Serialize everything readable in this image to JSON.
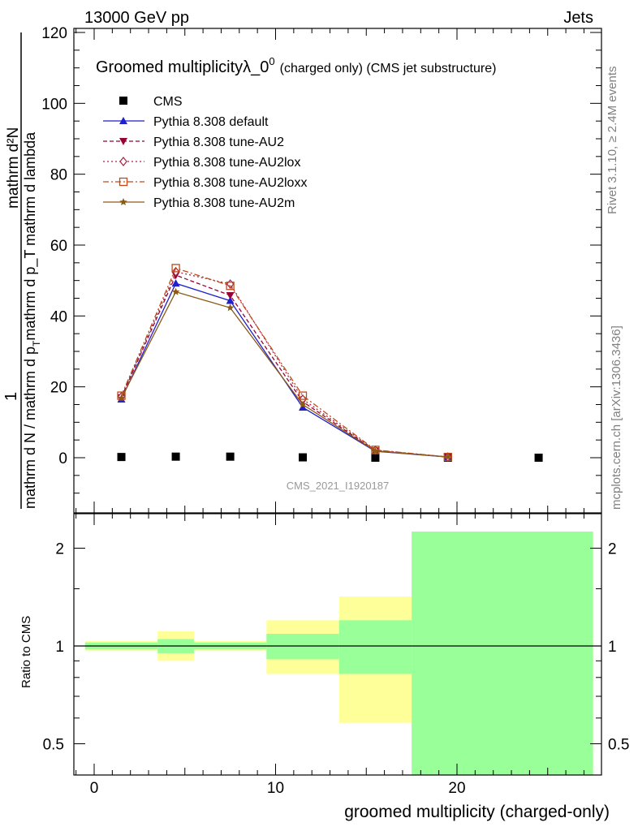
{
  "header": {
    "left": "13000 GeV pp",
    "right": "Jets"
  },
  "side_text": {
    "rivet": "Rivet 3.1.10, ≥ 2.4M events",
    "mcplots": "mcplots.cern.ch [arXiv:1306.3436]"
  },
  "chart_data": [
    {
      "type": "scatter",
      "title": "Groomed multiplicityλ_0",
      "title_sup": "0",
      "title_suffix": "(charged only) (CMS jet substructure)",
      "watermark": "CMS_2021_I1920187",
      "ylabel_numerator": "mathrm d²N",
      "ylabel_denominator": "mathrm d N / mathrm d p",
      "ylabel_prefix": "1",
      "ylabel_full_denominator_tail": "mathrm d p_T mathrm d lambda",
      "ylim": [
        -14,
        121
      ],
      "yticks": [
        0,
        20,
        40,
        60,
        80,
        100,
        120
      ],
      "xlim": [
        -1,
        28
      ],
      "legend_position": "top-left",
      "series": [
        {
          "name": "CMS",
          "marker": "square",
          "color": "#000000",
          "x": [
            1.5,
            4.5,
            7.5,
            11.5,
            15.5,
            19.5,
            24.5
          ],
          "y": [
            0.2,
            0.3,
            0.3,
            0.1,
            0.0,
            0.0,
            0.0
          ]
        },
        {
          "name": "Pythia 8.308 default",
          "marker": "triangle-up",
          "dash": "solid",
          "color": "#1f1fcc",
          "x": [
            1.5,
            4.5,
            7.5,
            11.5,
            15.5,
            19.5
          ],
          "y": [
            16.5,
            49.2,
            44.3,
            14.2,
            1.8,
            0.2
          ]
        },
        {
          "name": "Pythia 8.308 tune-AU2",
          "marker": "triangle-down",
          "dash": "dashed",
          "color": "#990033",
          "x": [
            1.5,
            4.5,
            7.5,
            11.5,
            15.5,
            19.5
          ],
          "y": [
            17.0,
            51.5,
            45.8,
            15.8,
            2.0,
            0.2
          ]
        },
        {
          "name": "Pythia 8.308 tune-AU2lox",
          "marker": "diamond-open",
          "dash": "dotted",
          "color": "#aa2244",
          "x": [
            1.5,
            4.5,
            7.5,
            11.5,
            15.5,
            19.5
          ],
          "y": [
            17.2,
            52.5,
            49.0,
            16.5,
            2.1,
            0.2
          ]
        },
        {
          "name": "Pythia 8.308 tune-AU2loxx",
          "marker": "square-open",
          "dash": "dashdot",
          "color": "#c04a1a",
          "x": [
            1.5,
            4.5,
            7.5,
            11.5,
            15.5,
            19.5
          ],
          "y": [
            17.5,
            53.5,
            48.5,
            17.5,
            2.2,
            0.2
          ]
        },
        {
          "name": "Pythia 8.308 tune-AU2m",
          "marker": "star",
          "dash": "solid",
          "color": "#8b5a14",
          "x": [
            1.5,
            4.5,
            7.5,
            11.5,
            15.5,
            19.5
          ],
          "y": [
            16.8,
            46.8,
            42.3,
            15.0,
            1.9,
            0.2
          ]
        }
      ]
    },
    {
      "type": "area",
      "ylabel": "Ratio to CMS",
      "xlabel": "groomed multiplicity (charged-only)",
      "ylim": [
        0.35,
        2.25
      ],
      "yticks": [
        0.5,
        1,
        2
      ],
      "xticks": [
        0,
        10,
        20
      ],
      "xlim": [
        -1,
        28
      ],
      "reference_line": 1,
      "bands": [
        {
          "x0": -0.5,
          "x1": 3.5,
          "yellow": [
            0.965,
            1.035
          ],
          "green": [
            0.975,
            1.025
          ]
        },
        {
          "x0": 3.5,
          "x1": 5.5,
          "yellow": [
            0.9,
            1.11
          ],
          "green": [
            0.95,
            1.05
          ]
        },
        {
          "x0": 5.5,
          "x1": 9.5,
          "yellow": [
            0.965,
            1.035
          ],
          "green": [
            0.975,
            1.025
          ]
        },
        {
          "x0": 9.5,
          "x1": 13.5,
          "yellow": [
            0.82,
            1.2
          ],
          "green": [
            0.91,
            1.09
          ]
        },
        {
          "x0": 13.5,
          "x1": 17.5,
          "yellow": [
            0.58,
            1.42
          ],
          "green": [
            0.82,
            1.2
          ]
        },
        {
          "x0": 17.5,
          "x1": 27.5,
          "yellow": [
            0.35,
            2.25
          ],
          "green": [
            0.35,
            2.25
          ]
        }
      ],
      "band_colors": {
        "yellow": "#ffff99",
        "green": "#99ff99"
      }
    }
  ]
}
